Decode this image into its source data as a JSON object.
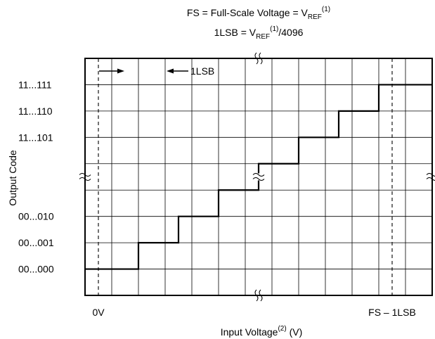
{
  "chart_data": {
    "type": "line",
    "title_line1": {
      "main": "FS = Full-Scale Voltage = V",
      "sub": "REF",
      "sup": "(1)"
    },
    "title_line2": {
      "pre": "1LSB = V",
      "sub": "REF",
      "sup": "(1)",
      "post": "/4096"
    },
    "xlabel": {
      "main": "Input Voltage",
      "sup": "(2)",
      "post": " (V)"
    },
    "ylabel": "Output Code",
    "x_tick_labels": [
      {
        "label": "0V",
        "x": 0.5
      },
      {
        "label": "FS – 1LSB",
        "x": 11.5
      }
    ],
    "y_tick_labels": [
      {
        "label": "11...111",
        "y": 7
      },
      {
        "label": "11...110",
        "y": 6
      },
      {
        "label": "11...101",
        "y": 5
      },
      {
        "label": "00...010",
        "y": 2
      },
      {
        "label": "00...001",
        "y": 1
      },
      {
        "label": "00...000",
        "y": 0
      }
    ],
    "lsb_annotation": "1LSB",
    "grid": true,
    "xlim": [
      0,
      13
    ],
    "ylim": [
      -1,
      8
    ],
    "x_breaks": [
      6.5
    ],
    "y_breaks": [
      3.5
    ],
    "series": [
      {
        "x": [
          0,
          2,
          2,
          3.5,
          3.5,
          5,
          5,
          6.5,
          6.5,
          8,
          8,
          9.5,
          9.5,
          11,
          11,
          13
        ],
        "y": [
          0,
          0,
          1,
          1,
          2,
          2,
          3,
          3,
          4,
          4,
          5,
          5,
          6,
          6,
          7,
          7
        ]
      }
    ]
  }
}
